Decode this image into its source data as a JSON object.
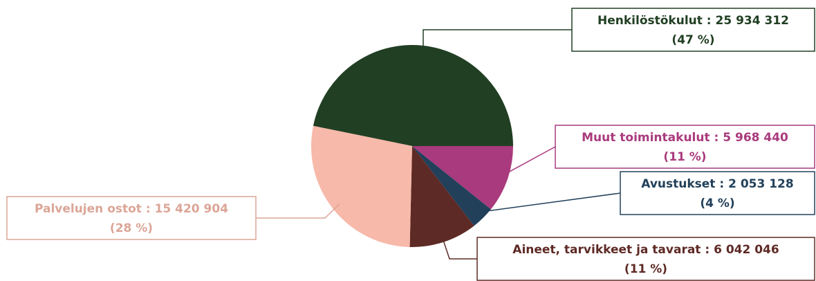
{
  "chart_data": {
    "type": "pie",
    "categories": [
      "Henkilöstökulut",
      "Muut toimintakulut",
      "Avustukset",
      "Aineet, tarvikkeet ja tavarat",
      "Palvelujen ostot"
    ],
    "values": [
      25934312,
      5968440,
      2053128,
      6042046,
      15420904
    ],
    "value_labels": [
      "25 934 312",
      "5 968 440",
      "2 053 128",
      "6 042 046",
      "15 420 904"
    ],
    "label_separator": " : ",
    "percents": [
      47,
      11,
      4,
      11,
      28
    ],
    "percent_labels": [
      "(47 %)",
      "(11 %)",
      "(4 %)",
      "(11 %)",
      "(28 %)"
    ],
    "colors": [
      "#213f23",
      "#a93a7d",
      "#22405a",
      "#5e2a25",
      "#f7b9a9"
    ],
    "label_colors": [
      "#213f23",
      "#a93a7d",
      "#22405a",
      "#5e2a25",
      "#dba596"
    ]
  }
}
